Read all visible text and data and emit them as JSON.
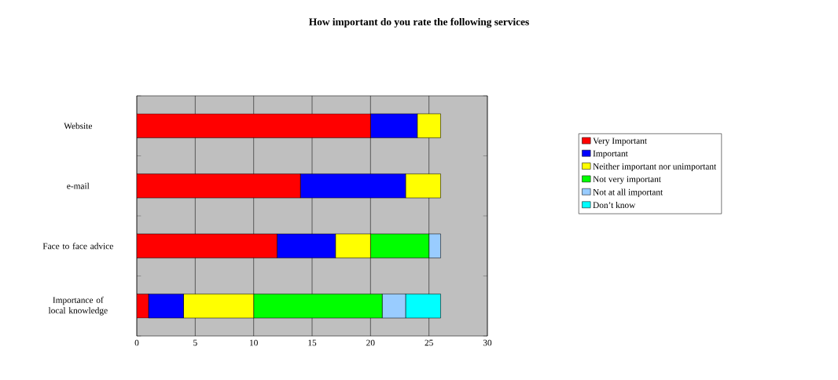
{
  "chart_data": {
    "type": "bar",
    "orientation": "horizontal",
    "stacked": true,
    "title": "How important do you rate the following services",
    "categories": [
      "Website",
      "e-mail",
      "Face to face advice",
      "Importance of local knowledge"
    ],
    "series": [
      {
        "name": "Very Important",
        "color": "#ff0000",
        "values": [
          20,
          14,
          12,
          1
        ]
      },
      {
        "name": "Important",
        "color": "#0000ff",
        "values": [
          4,
          9,
          5,
          3
        ]
      },
      {
        "name": "Neither important nor unimportant",
        "color": "#ffff00",
        "values": [
          2,
          3,
          3,
          6
        ]
      },
      {
        "name": "Not very important",
        "color": "#00ff00",
        "values": [
          null,
          null,
          5,
          11
        ]
      },
      {
        "name": "Not at all important",
        "color": "#99ccff",
        "values": [
          null,
          null,
          1,
          2
        ]
      },
      {
        "name": "Don’t know",
        "color": "#00ffff",
        "values": [
          null,
          null,
          null,
          3
        ]
      }
    ],
    "xlim": [
      0,
      30
    ],
    "xticks": [
      0,
      5,
      10,
      15,
      20,
      25,
      30
    ],
    "grid": "x",
    "legend": "right"
  }
}
